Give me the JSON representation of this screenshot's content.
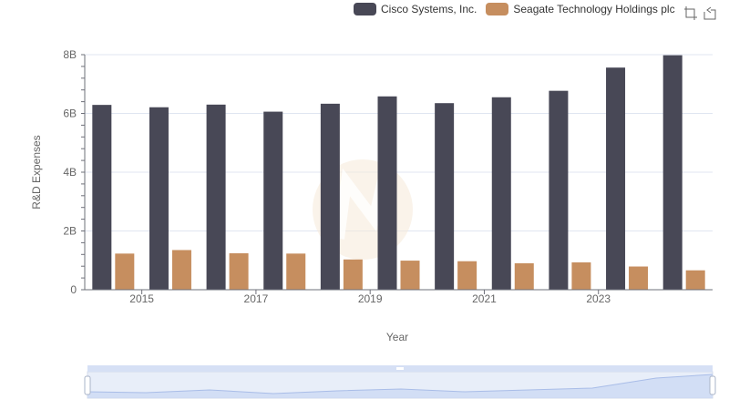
{
  "chart_data": {
    "type": "bar",
    "categories": [
      "2014",
      "2015",
      "2016",
      "2017",
      "2018",
      "2019",
      "2020",
      "2021",
      "2022",
      "2023",
      "2024"
    ],
    "x_tick_labels": [
      "2015",
      "2017",
      "2019",
      "2021",
      "2023"
    ],
    "series": [
      {
        "name": "Cisco Systems, Inc.",
        "color": "#484856",
        "values": [
          6.29,
          6.21,
          6.3,
          6.06,
          6.33,
          6.58,
          6.35,
          6.55,
          6.77,
          7.56,
          7.98
        ]
      },
      {
        "name": "Seagate Technology Holdings plc",
        "color": "#c68e5f",
        "values": [
          1.23,
          1.35,
          1.24,
          1.23,
          1.03,
          0.99,
          0.97,
          0.9,
          0.93,
          0.79,
          0.66
        ]
      }
    ],
    "xlabel": "Year",
    "ylabel": "R&D Expenses",
    "ylim": [
      0,
      8
    ],
    "y_ticks": [
      "0",
      "2B",
      "4B",
      "6B",
      "8B"
    ],
    "grid": true,
    "legend_position": "top-right"
  },
  "toolbox": {
    "zoom_icon": "zoom-select-icon",
    "restore_icon": "restore-icon"
  },
  "datazoom": {
    "start_percent": 0,
    "end_percent": 100
  }
}
